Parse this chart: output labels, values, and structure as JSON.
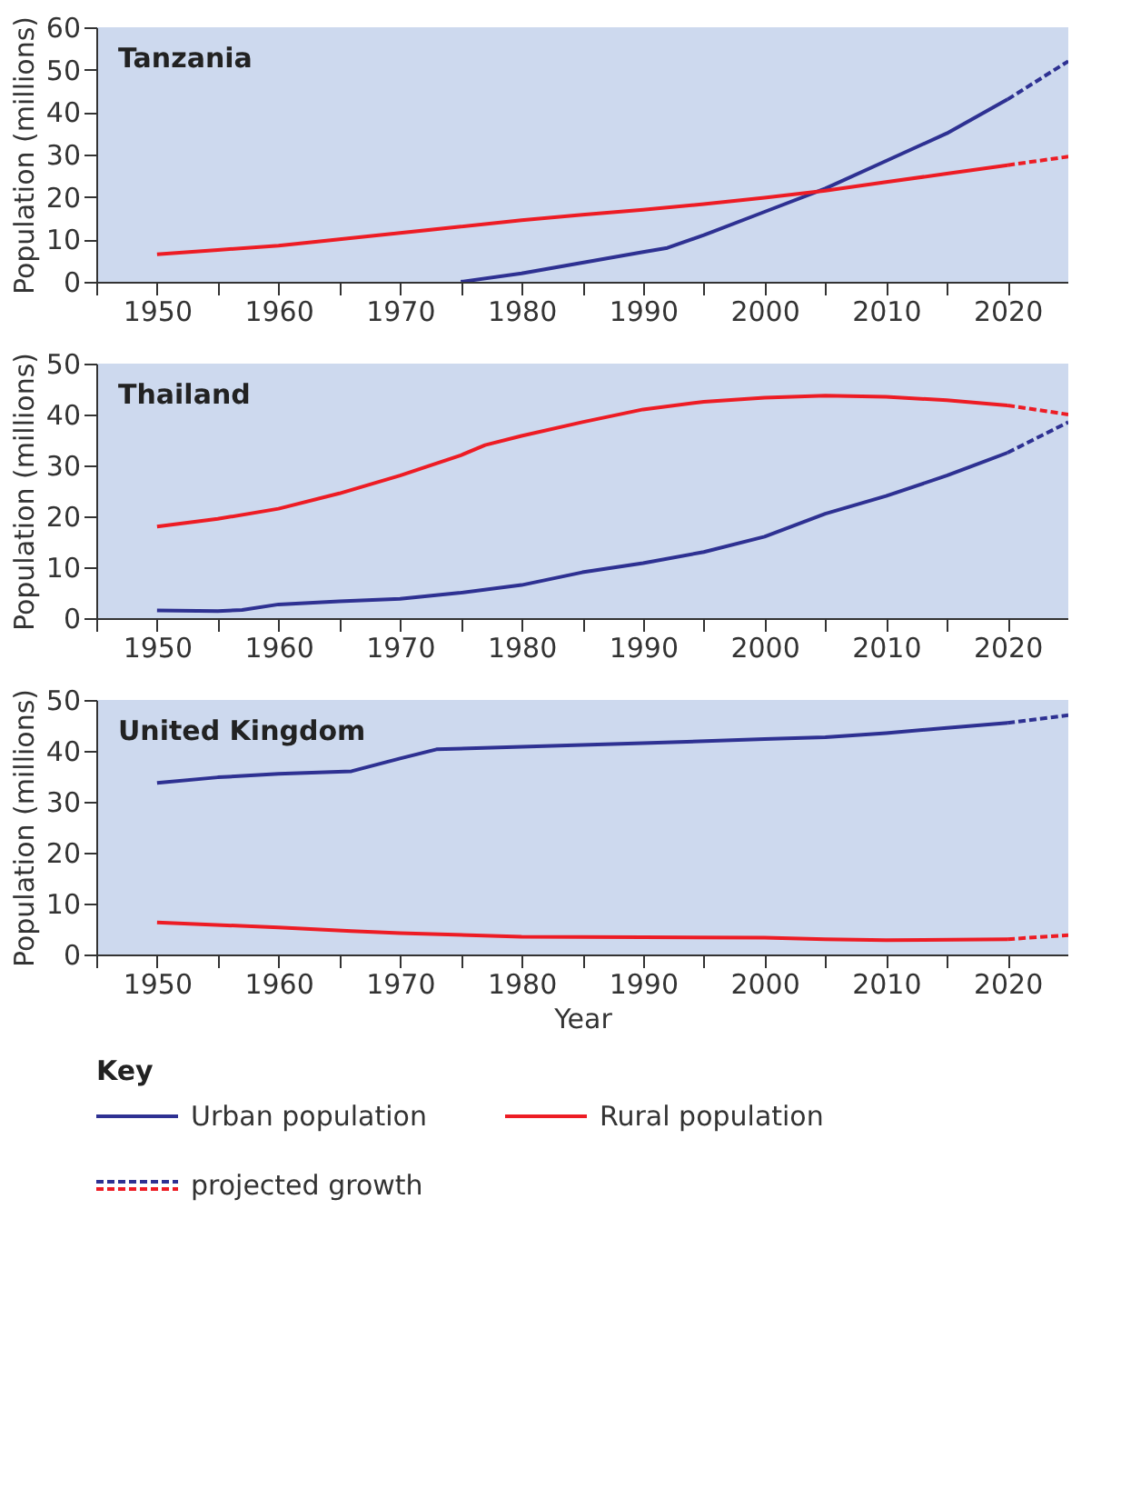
{
  "chart_data": [
    {
      "type": "line",
      "title": "Tanzania",
      "ylabel": "Population (millions)",
      "xlim": [
        1945,
        2025
      ],
      "ylim": [
        0,
        60
      ],
      "yticks": [
        0,
        10,
        20,
        30,
        40,
        50,
        60
      ],
      "xticks": [
        {
          "value": 1945,
          "label": null
        },
        1950,
        {
          "value": 1955,
          "label": null
        },
        1960,
        {
          "value": 1965,
          "label": null
        },
        1970,
        {
          "value": 1975,
          "label": null
        },
        1980,
        {
          "value": 1985,
          "label": null
        },
        1990,
        {
          "value": 1995,
          "label": null
        },
        2000,
        {
          "value": 2005,
          "label": null
        },
        2010,
        {
          "value": 2015,
          "label": null
        },
        2020
      ],
      "grid": false,
      "legend": false,
      "series": [
        {
          "color": "#2e3192",
          "line_style": "solid",
          "x": [
            1975,
            1980,
            1985,
            1990,
            1992,
            1995,
            2000,
            2005,
            2010,
            2015,
            2020
          ],
          "values": [
            0,
            2,
            4.5,
            7,
            8,
            11,
            16.5,
            22,
            28.5,
            35,
            43
          ]
        },
        {
          "color": "#ed1c24",
          "line_style": "solid",
          "x": [
            1950,
            1955,
            1960,
            1965,
            1970,
            1975,
            1980,
            1985,
            1990,
            1995,
            2000,
            2005,
            2010,
            2015,
            2020
          ],
          "values": [
            6.5,
            7.5,
            8.5,
            10,
            11.5,
            13,
            14.5,
            15.8,
            17,
            18.3,
            19.8,
            21.5,
            23.5,
            25.5,
            27.5
          ]
        },
        {
          "color": "#2e3192",
          "line_style": "dashed",
          "x": [
            2020,
            2025
          ],
          "values": [
            43,
            52
          ]
        },
        {
          "color": "#ed1c24",
          "line_style": "dashed",
          "x": [
            2020,
            2025
          ],
          "values": [
            27.5,
            29.5
          ]
        }
      ]
    },
    {
      "type": "line",
      "title": "Thailand",
      "ylabel": "Population (millions)",
      "xlim": [
        1945,
        2025
      ],
      "ylim": [
        0,
        50
      ],
      "yticks": [
        0,
        10,
        20,
        30,
        40,
        50
      ],
      "xticks": [
        {
          "value": 1945,
          "label": null
        },
        1950,
        {
          "value": 1955,
          "label": null
        },
        1960,
        {
          "value": 1965,
          "label": null
        },
        1970,
        {
          "value": 1975,
          "label": null
        },
        1980,
        {
          "value": 1985,
          "label": null
        },
        1990,
        {
          "value": 1995,
          "label": null
        },
        2000,
        {
          "value": 2005,
          "label": null
        },
        2010,
        {
          "value": 2015,
          "label": null
        },
        2020
      ],
      "grid": false,
      "legend": false,
      "series": [
        {
          "color": "#2e3192",
          "line_style": "solid",
          "x": [
            1950,
            1955,
            1957,
            1960,
            1965,
            1970,
            1975,
            1980,
            1985,
            1990,
            1995,
            2000,
            2005,
            2010,
            2015,
            2020
          ],
          "values": [
            1.5,
            1.4,
            1.6,
            2.7,
            3.3,
            3.8,
            5,
            6.5,
            9,
            10.8,
            13,
            16,
            20.5,
            24,
            28,
            32.5
          ]
        },
        {
          "color": "#ed1c24",
          "line_style": "solid",
          "x": [
            1950,
            1955,
            1960,
            1965,
            1970,
            1975,
            1977,
            1980,
            1985,
            1990,
            1995,
            2000,
            2005,
            2010,
            2015,
            2020
          ],
          "values": [
            18,
            19.5,
            21.5,
            24.5,
            28,
            32,
            34,
            35.8,
            38.5,
            41,
            42.5,
            43.3,
            43.7,
            43.5,
            42.8,
            41.8
          ]
        },
        {
          "color": "#2e3192",
          "line_style": "dashed",
          "x": [
            2020,
            2025
          ],
          "values": [
            32.5,
            38.5
          ]
        },
        {
          "color": "#ed1c24",
          "line_style": "dashed",
          "x": [
            2020,
            2025
          ],
          "values": [
            41.8,
            40
          ]
        }
      ]
    },
    {
      "type": "line",
      "title": "United Kingdom",
      "xlabel": "Year",
      "ylabel": "Population (millions)",
      "xlim": [
        1945,
        2025
      ],
      "ylim": [
        0,
        50
      ],
      "yticks": [
        0,
        10,
        20,
        30,
        40,
        50
      ],
      "xticks": [
        {
          "value": 1945,
          "label": null
        },
        1950,
        {
          "value": 1955,
          "label": null
        },
        1960,
        {
          "value": 1965,
          "label": null
        },
        1970,
        {
          "value": 1975,
          "label": null
        },
        1980,
        {
          "value": 1985,
          "label": null
        },
        1990,
        {
          "value": 1995,
          "label": null
        },
        2000,
        {
          "value": 2005,
          "label": null
        },
        2010,
        {
          "value": 2015,
          "label": null
        },
        2020
      ],
      "grid": false,
      "legend": "bottom",
      "legend_title": "Key",
      "series": [
        {
          "name": "Urban population",
          "color": "#2e3192",
          "line_style": "solid",
          "x": [
            1950,
            1955,
            1960,
            1966,
            1970,
            1973,
            1980,
            1990,
            2000,
            2005,
            2010,
            2015,
            2020
          ],
          "values": [
            33.7,
            34.8,
            35.5,
            36,
            38.5,
            40.3,
            40.8,
            41.5,
            42.3,
            42.7,
            43.5,
            44.5,
            45.5
          ]
        },
        {
          "name": "Rural population",
          "color": "#ed1c24",
          "line_style": "solid",
          "x": [
            1950,
            1960,
            1966,
            1970,
            1980,
            1990,
            2000,
            2005,
            2010,
            2020
          ],
          "values": [
            6.3,
            5.3,
            4.6,
            4.2,
            3.5,
            3.4,
            3.3,
            3,
            2.8,
            3
          ]
        },
        {
          "name": "projected growth",
          "color": "#2e3192",
          "line_style": "dashed",
          "x": [
            2020,
            2025
          ],
          "values": [
            45.5,
            47
          ]
        },
        {
          "color": "#ed1c24",
          "line_style": "dashed",
          "x": [
            2020,
            2025
          ],
          "values": [
            3,
            3.8
          ]
        }
      ]
    }
  ]
}
